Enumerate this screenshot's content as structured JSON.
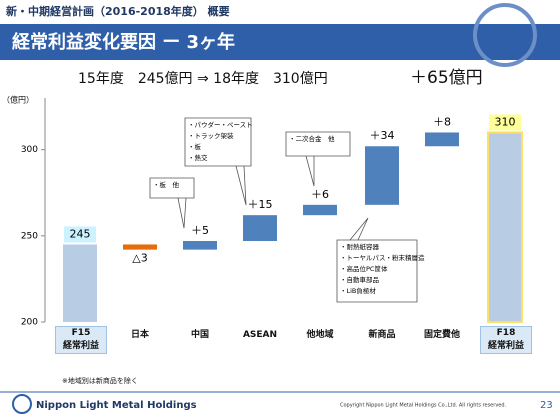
{
  "header": {
    "section": "新・中期経営計画（2016-2018年度） 概要",
    "title": "経常利益変化要因 ー 3ヶ年"
  },
  "headline": {
    "summary": "15年度　245億円 ⇒ 18年度　310億円",
    "change": "＋65億円"
  },
  "chart_data": {
    "type": "waterfall",
    "y_unit": "（億円）",
    "categories": [
      "F15\n経常利益",
      "日本",
      "中国",
      "ASEAN",
      "他地域",
      "新商品",
      "固定費他",
      "F18\n経常利益"
    ],
    "values": [
      245,
      -3,
      5,
      15,
      6,
      34,
      8,
      310
    ],
    "value_labels": [
      "245",
      "△3",
      "＋5",
      "＋15",
      "＋6",
      "＋34",
      "＋8",
      "310"
    ],
    "total_color": "#b8cce4",
    "increase_color": "#4f81bd",
    "decrease_color": "#e46c0a",
    "ylim": [
      200,
      330
    ],
    "yticks": [
      200,
      250,
      300
    ],
    "annotations": [
      {
        "lines": [
          "・パウダー・ペースト",
          "・トラック架装",
          "・板",
          "・熱交"
        ]
      },
      {
        "lines": [
          "・板　他"
        ]
      },
      {
        "lines": [
          "・二次合金　他"
        ]
      },
      {
        "lines": [
          "・耐熱紙容器",
          "・トーヤルパス・粉末積層造",
          "・高品位PC筐体",
          "・自動車部品",
          "・LiB負極材"
        ]
      }
    ]
  },
  "note": "※地域別は新商品を除く",
  "footer": {
    "company": "Nippon Light Metal Holdings",
    "copyright": "Copyright Nippon Light Metal Holdings Co.,Ltd. All rights reserved.",
    "page": "23"
  }
}
